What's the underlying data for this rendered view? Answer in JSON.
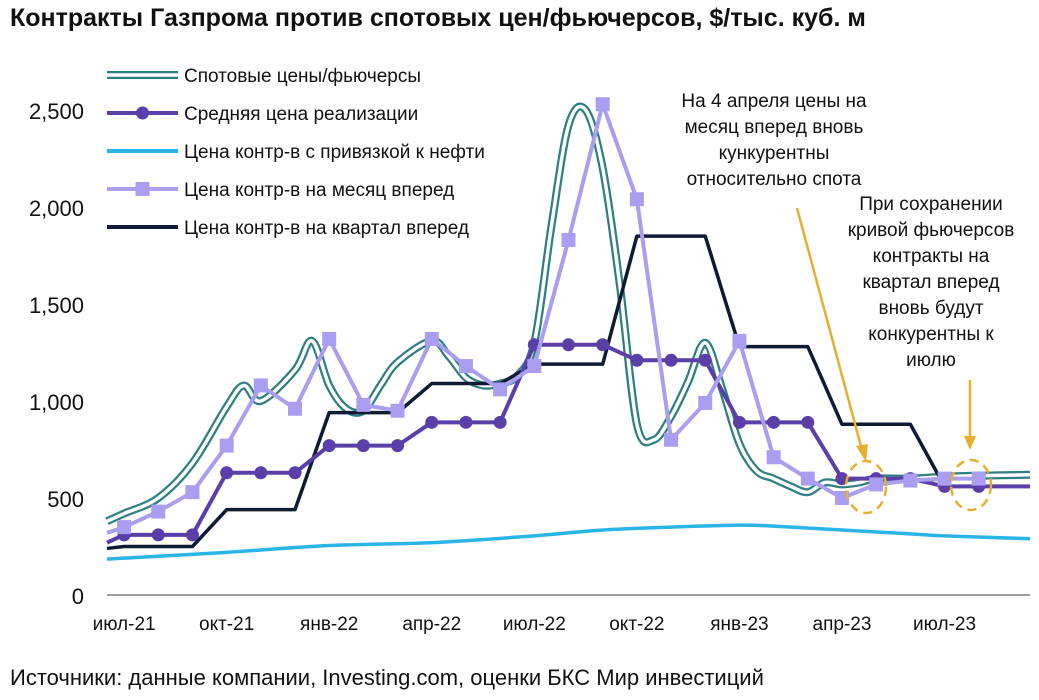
{
  "chart_data": {
    "type": "line",
    "title": "Контракты Газпрома против спотовых цен/фьючерсов, $/тыс. куб. м",
    "xlabel": "",
    "ylabel": "",
    "ylim": [
      0,
      2500
    ],
    "yticks": [
      0,
      500,
      1000,
      1500,
      2000,
      2500
    ],
    "ytick_labels": [
      "0",
      "500",
      "1,000",
      "1,500",
      "2,000",
      "2,500"
    ],
    "x_range": [
      0,
      26.5
    ],
    "xtick_labels": [
      "июл-21",
      "окт-21",
      "янв-22",
      "апр-22",
      "июл-22",
      "окт-22",
      "янв-23",
      "апр-23",
      "июл-23"
    ],
    "xtick_positions": [
      0,
      3,
      6,
      9,
      12,
      15,
      18,
      21,
      24
    ],
    "series": [
      {
        "name": "Спотовые цены/фьючерсы",
        "style": "double",
        "color": "#2f7f82",
        "x": [
          -0.5,
          0,
          1,
          2,
          3,
          3.5,
          4,
          5,
          5.5,
          6,
          6.5,
          7,
          7.5,
          8,
          9,
          9.5,
          10,
          10.5,
          11,
          11.5,
          12,
          12.5,
          13,
          13.5,
          14,
          14.5,
          15,
          15.5,
          16,
          16.5,
          17,
          17.5,
          18,
          18.5,
          19,
          19.5,
          20,
          20.5,
          21,
          21.5,
          22,
          23,
          24,
          25,
          26.5
        ],
        "values": [
          380,
          420,
          500,
          680,
          970,
          1080,
          1000,
          1160,
          1310,
          1080,
          960,
          950,
          1080,
          1200,
          1310,
          1230,
          1120,
          1080,
          1090,
          1130,
          1300,
          1900,
          2420,
          2500,
          2200,
          1600,
          880,
          800,
          920,
          1100,
          1300,
          1060,
          780,
          640,
          600,
          560,
          530,
          580,
          570,
          580,
          600,
          600,
          610,
          615,
          620
        ]
      },
      {
        "name": "Средняя цена реализации",
        "style": "line-circle",
        "color": "#5b3fa8",
        "x": [
          -0.5,
          0,
          1,
          2,
          3,
          4,
          5,
          6,
          7,
          8,
          9,
          10,
          11,
          12,
          13,
          14,
          15,
          16,
          17,
          18,
          19,
          20,
          21,
          22,
          23,
          24,
          25,
          26.5
        ],
        "values": [
          270,
          310,
          310,
          310,
          630,
          630,
          630,
          770,
          770,
          770,
          890,
          890,
          890,
          1290,
          1290,
          1290,
          1210,
          1210,
          1210,
          890,
          890,
          890,
          600,
          600,
          600,
          560,
          560,
          560
        ]
      },
      {
        "name": "Цена контр-в с привязкой к нефти",
        "style": "line",
        "color": "#2bb4e6",
        "x": [
          -0.5,
          0,
          3,
          6,
          9,
          12,
          14,
          16,
          18,
          19,
          21,
          23,
          24,
          26.5
        ],
        "values": [
          185,
          190,
          220,
          255,
          270,
          305,
          335,
          350,
          360,
          355,
          335,
          315,
          305,
          290
        ]
      },
      {
        "name": "Цена контр-в на месяц вперед",
        "style": "line-square",
        "color": "#a99ef0",
        "x": [
          -0.5,
          0,
          1,
          2,
          3,
          4,
          5,
          6,
          7,
          8,
          9,
          10,
          11,
          12,
          13,
          14,
          15,
          16,
          17,
          18,
          19,
          20,
          21,
          22,
          23,
          24,
          25
        ],
        "values": [
          320,
          350,
          430,
          530,
          770,
          1080,
          960,
          1320,
          980,
          950,
          1320,
          1180,
          1060,
          1180,
          1830,
          2530,
          2040,
          800,
          990,
          1310,
          710,
          600,
          500,
          570,
          590,
          600,
          600
        ]
      },
      {
        "name": "Цена контр-в на квартал вперед",
        "style": "line",
        "color": "#0f1a33",
        "x": [
          -0.5,
          0,
          2,
          3,
          4,
          5,
          6,
          7,
          8,
          9,
          11,
          12,
          14,
          15,
          17,
          18,
          20,
          21,
          23,
          24,
          26.5
        ],
        "values": [
          240,
          250,
          250,
          440,
          440,
          440,
          940,
          940,
          940,
          1090,
          1090,
          1190,
          1190,
          1850,
          1850,
          1280,
          1280,
          880,
          880,
          560,
          560
        ]
      }
    ],
    "annotations": [
      "На 4 апреля цены на месяц вперед вновь кункурентны относительно спота",
      "При сохранении кривой фьючерсов контракты на квартал вперед вновь будут конкурентны к июлю"
    ],
    "legend_placement": "top-left"
  },
  "source": "Источники: данные компании, Investing.com, оценки БКС Мир инвестиций",
  "colors": {
    "accent": "#e8ae2f",
    "spot": "#2f7f82",
    "avg": "#5b3fa8",
    "oil": "#2bb4e6",
    "month": "#a99ef0",
    "quarter": "#0f1a33"
  }
}
